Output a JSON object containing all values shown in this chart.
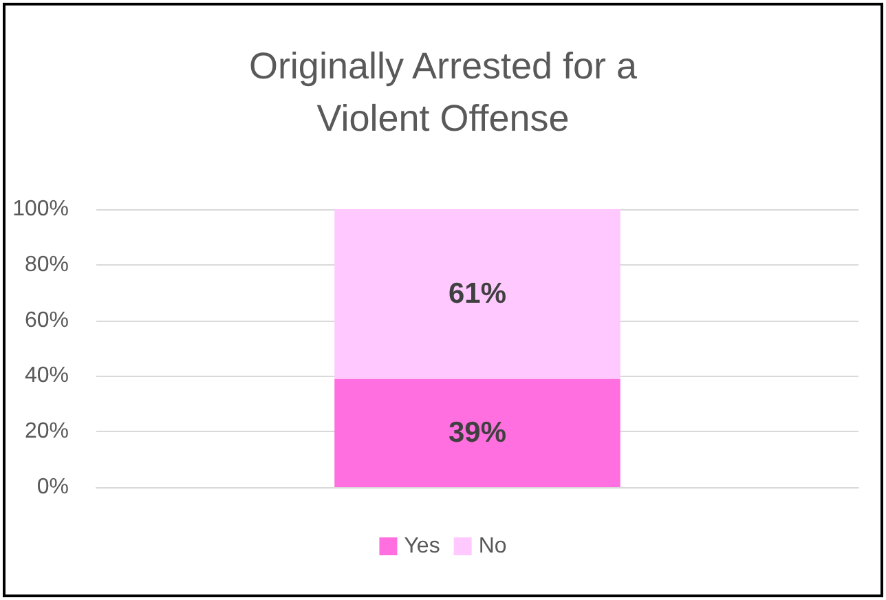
{
  "chart_data": {
    "type": "bar",
    "title": "Originally Arrested for a\nViolent Offense",
    "categories": [
      null
    ],
    "stacked": true,
    "series": [
      {
        "name": "Yes",
        "color": "#ff6fe0",
        "values": [
          39
        ],
        "value_labels": [
          "39%"
        ]
      },
      {
        "name": "No",
        "color": "#ffc8ff",
        "values": [
          61
        ],
        "value_labels": [
          "61%"
        ]
      }
    ],
    "ylim": [
      0,
      100
    ],
    "yticks": [
      {
        "value": 0,
        "label": "0%"
      },
      {
        "value": 20,
        "label": "20%"
      },
      {
        "value": 40,
        "label": "40%"
      },
      {
        "value": 60,
        "label": "60%"
      },
      {
        "value": 80,
        "label": "80%"
      },
      {
        "value": 100,
        "label": "100%"
      }
    ],
    "grid": "y",
    "legend": "bottom"
  }
}
